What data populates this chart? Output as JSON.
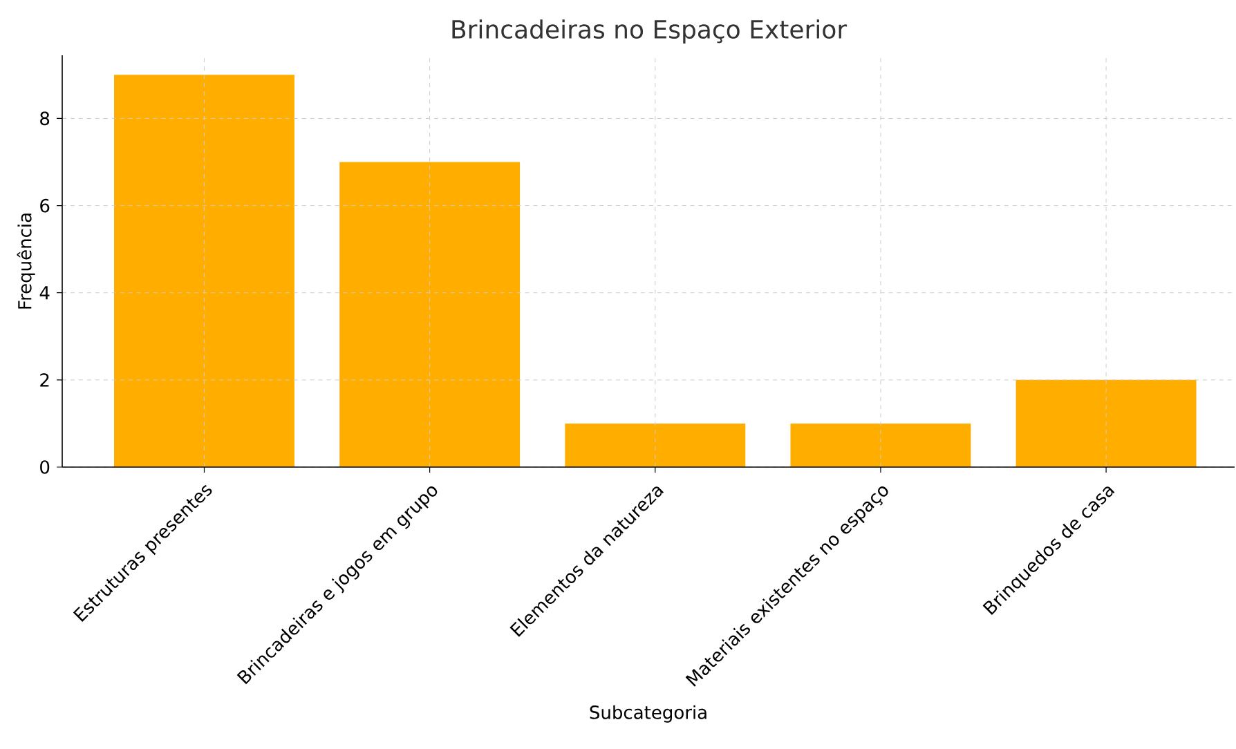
{
  "chart_data": {
    "type": "bar",
    "title": "Brincadeiras no Espaço Exterior",
    "xlabel": "Subcategoria",
    "ylabel": "Frequência",
    "categories": [
      "Estruturas presentes",
      "Brincadeiras e jogos em grupo",
      "Elementos da natureza",
      "Materiais existentes no espaço",
      "Brinquedos de casa"
    ],
    "values": [
      9,
      7,
      1,
      1,
      2
    ],
    "color": "#ffae00",
    "ylim": [
      0,
      9.45
    ],
    "yticks": [
      0,
      2,
      4,
      6,
      8
    ],
    "grid": true
  }
}
